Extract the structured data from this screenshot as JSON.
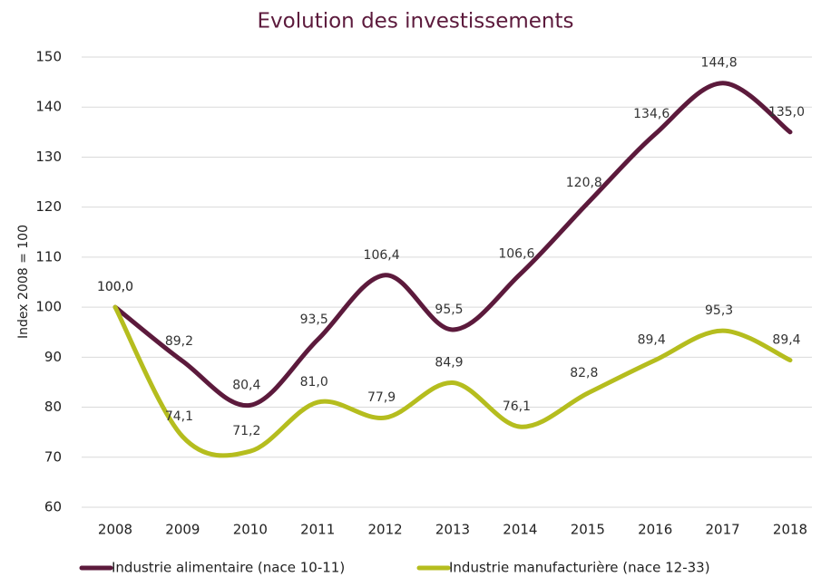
{
  "chart_data": {
    "type": "line",
    "title": "Evolution des investissements",
    "y_label": "Index 2008 = 100",
    "categories": [
      "2008",
      "2009",
      "2010",
      "2011",
      "2012",
      "2013",
      "2014",
      "2015",
      "2016",
      "2017",
      "2018"
    ],
    "series": [
      {
        "name": "Industrie alimentaire (nace 10-11)",
        "color": "#5c1a3c",
        "values": [
          100.0,
          89.2,
          80.4,
          93.5,
          106.4,
          95.5,
          106.6,
          120.8,
          134.6,
          144.8,
          135.0
        ],
        "value_labels": [
          "100,0",
          "89,2",
          "80,4",
          "93,5",
          "106,4",
          "95,5",
          "106,6",
          "120,8",
          "134,6",
          "144,8",
          "135,0"
        ]
      },
      {
        "name": "Industrie manufacturière (nace 12-33)",
        "color": "#b5bd1e",
        "values": [
          100.0,
          74.1,
          71.2,
          81.0,
          77.9,
          84.9,
          76.1,
          82.8,
          89.4,
          95.3,
          89.4
        ],
        "value_labels": [
          "100,0",
          "74,1",
          "71,2",
          "81,0",
          "77,9",
          "84,9",
          "76,1",
          "82,8",
          "89,4",
          "95,3",
          "89,4"
        ]
      }
    ],
    "ylim": [
      60,
      150
    ],
    "yticks": [
      60,
      70,
      80,
      90,
      100,
      110,
      120,
      130,
      140,
      150
    ],
    "grid": true,
    "legend": "bottom"
  }
}
